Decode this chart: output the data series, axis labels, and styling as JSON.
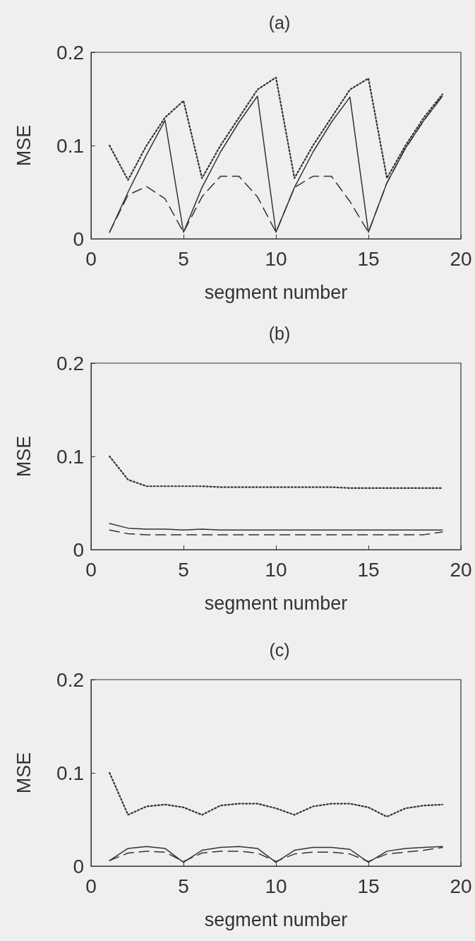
{
  "chart_data": [
    {
      "type": "line",
      "title": "(a)",
      "xlabel": "segment number",
      "ylabel": "MSE",
      "x": [
        1,
        2,
        3,
        4,
        5,
        6,
        7,
        8,
        9,
        10,
        11,
        12,
        13,
        14,
        15,
        16,
        17,
        18,
        19
      ],
      "xlim": [
        0,
        20
      ],
      "xticks": [
        0,
        5,
        10,
        15,
        20
      ],
      "ylim": [
        0,
        0.2
      ],
      "yticks": [
        0,
        0.1,
        0.2
      ],
      "marker": "none",
      "series": [
        {
          "color": "#333333",
          "line_style": "solid",
          "values": [
            0.007,
            0.05,
            0.09,
            0.127,
            0.007,
            0.055,
            0.093,
            0.125,
            0.153,
            0.007,
            0.055,
            0.093,
            0.125,
            0.152,
            0.007,
            0.06,
            0.097,
            0.127,
            0.153
          ]
        },
        {
          "color": "#333333",
          "line_style": "dashed",
          "values": [
            0.007,
            0.047,
            0.056,
            0.043,
            0.007,
            0.045,
            0.067,
            0.067,
            0.045,
            0.007,
            0.055,
            0.067,
            0.067,
            0.04,
            0.007,
            0.06,
            0.097,
            0.127,
            0.153
          ]
        },
        {
          "color": "#333333",
          "line_style": "dotted",
          "values": [
            0.1,
            0.063,
            0.1,
            0.13,
            0.148,
            0.065,
            0.1,
            0.13,
            0.16,
            0.173,
            0.065,
            0.1,
            0.13,
            0.16,
            0.172,
            0.065,
            0.1,
            0.13,
            0.155
          ]
        }
      ]
    },
    {
      "type": "line",
      "title": "(b)",
      "xlabel": "segment number",
      "ylabel": "MSE",
      "x": [
        1,
        2,
        3,
        4,
        5,
        6,
        7,
        8,
        9,
        10,
        11,
        12,
        13,
        14,
        15,
        16,
        17,
        18,
        19
      ],
      "xlim": [
        0,
        20
      ],
      "xticks": [
        0,
        5,
        10,
        15,
        20
      ],
      "ylim": [
        0,
        0.2
      ],
      "yticks": [
        0,
        0.1,
        0.2
      ],
      "marker": "none",
      "series": [
        {
          "color": "#333333",
          "line_style": "solid",
          "values": [
            0.028,
            0.023,
            0.022,
            0.022,
            0.021,
            0.022,
            0.021,
            0.021,
            0.021,
            0.021,
            0.021,
            0.021,
            0.021,
            0.021,
            0.021,
            0.021,
            0.021,
            0.021,
            0.021
          ]
        },
        {
          "color": "#333333",
          "line_style": "dashed",
          "values": [
            0.021,
            0.017,
            0.016,
            0.016,
            0.016,
            0.016,
            0.016,
            0.016,
            0.016,
            0.016,
            0.016,
            0.016,
            0.016,
            0.016,
            0.016,
            0.016,
            0.016,
            0.016,
            0.019
          ]
        },
        {
          "color": "#333333",
          "line_style": "dotted",
          "values": [
            0.1,
            0.075,
            0.068,
            0.068,
            0.068,
            0.068,
            0.067,
            0.067,
            0.067,
            0.067,
            0.067,
            0.067,
            0.067,
            0.066,
            0.066,
            0.066,
            0.066,
            0.066,
            0.066
          ]
        }
      ]
    },
    {
      "type": "line",
      "title": "(c)",
      "xlabel": "segment number",
      "ylabel": "MSE",
      "x": [
        1,
        2,
        3,
        4,
        5,
        6,
        7,
        8,
        9,
        10,
        11,
        12,
        13,
        14,
        15,
        16,
        17,
        18,
        19
      ],
      "xlim": [
        0,
        20
      ],
      "xticks": [
        0,
        5,
        10,
        15,
        20
      ],
      "ylim": [
        0,
        0.2
      ],
      "yticks": [
        0,
        0.1,
        0.2
      ],
      "marker": "none",
      "series": [
        {
          "color": "#333333",
          "line_style": "solid",
          "values": [
            0.006,
            0.019,
            0.021,
            0.019,
            0.004,
            0.017,
            0.02,
            0.021,
            0.019,
            0.004,
            0.017,
            0.02,
            0.02,
            0.018,
            0.004,
            0.016,
            0.019,
            0.02,
            0.021
          ]
        },
        {
          "color": "#333333",
          "line_style": "dashed",
          "values": [
            0.006,
            0.014,
            0.016,
            0.015,
            0.005,
            0.014,
            0.016,
            0.016,
            0.014,
            0.005,
            0.013,
            0.015,
            0.015,
            0.013,
            0.005,
            0.013,
            0.015,
            0.017,
            0.02
          ]
        },
        {
          "color": "#333333",
          "line_style": "dotted",
          "values": [
            0.1,
            0.055,
            0.064,
            0.066,
            0.063,
            0.055,
            0.065,
            0.067,
            0.067,
            0.062,
            0.055,
            0.064,
            0.067,
            0.067,
            0.063,
            0.053,
            0.062,
            0.065,
            0.066
          ]
        }
      ]
    }
  ]
}
